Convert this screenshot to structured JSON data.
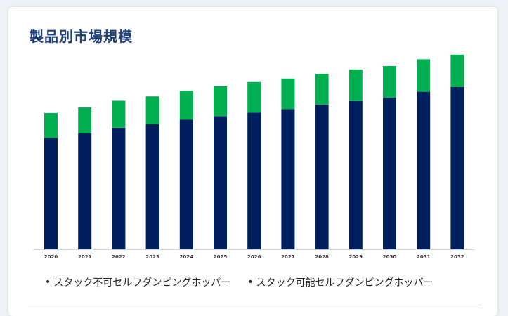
{
  "card": {
    "title": "製品別市場規模"
  },
  "chart_data": {
    "type": "bar",
    "stacked": true,
    "categories": [
      "2020",
      "2021",
      "2022",
      "2023",
      "2024",
      "2025",
      "2026",
      "2027",
      "2028",
      "2029",
      "2030",
      "2031",
      "2032"
    ],
    "series": [
      {
        "name": "スタック不可セルフダンピングホッパー",
        "color": "#001f5e",
        "values": [
          48.0,
          50.0,
          52.5,
          54.0,
          56.0,
          57.5,
          59.0,
          60.5,
          62.5,
          64.0,
          65.5,
          68.0,
          70.0
        ]
      },
      {
        "name": "スタック可能セルフダンピングホッパー",
        "color": "#00b050",
        "values": [
          10.8,
          11.2,
          11.6,
          12.0,
          12.4,
          12.8,
          13.2,
          13.2,
          13.2,
          13.6,
          13.6,
          14.0,
          14.0
        ]
      }
    ],
    "ylim": [
      0,
      100
    ],
    "grid": false,
    "legend_position": "bottom-left"
  },
  "legend": {
    "bullet": "•"
  }
}
